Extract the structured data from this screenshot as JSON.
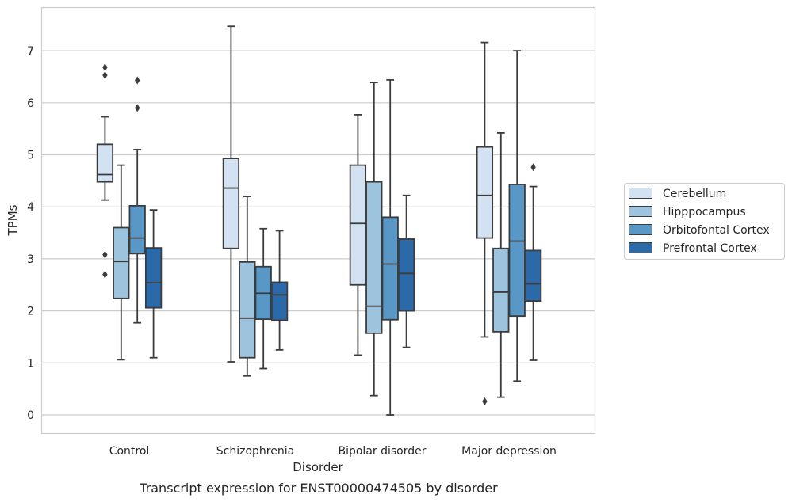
{
  "chart_data": {
    "type": "box",
    "title": "Transcript expression for ENST00000474505 by disorder",
    "xlabel": "Disorder",
    "ylabel": "TPMs",
    "ylim": [
      -0.35,
      7.85
    ],
    "yticks": [
      0,
      1,
      2,
      3,
      4,
      5,
      6,
      7
    ],
    "grid": "horizontal",
    "legend_position": "right",
    "categories": [
      "Control",
      "Schizophrenia",
      "Bipolar disorder",
      "Major depression"
    ],
    "series": [
      {
        "name": "Cerebellum",
        "color": "#d2e2f2",
        "boxes": [
          {
            "whislo": 4.13,
            "q1": 4.48,
            "med": 4.62,
            "q3": 5.2,
            "whishi": 5.73,
            "fliers": [
              6.68,
              6.53,
              3.08,
              2.7
            ]
          },
          {
            "whislo": 1.02,
            "q1": 3.2,
            "med": 4.36,
            "q3": 4.93,
            "whishi": 7.47,
            "fliers": []
          },
          {
            "whislo": 1.15,
            "q1": 2.5,
            "med": 3.68,
            "q3": 4.8,
            "whishi": 5.77,
            "fliers": []
          },
          {
            "whislo": 1.5,
            "q1": 3.4,
            "med": 4.22,
            "q3": 5.15,
            "whishi": 7.16,
            "fliers": [
              0.26
            ]
          }
        ]
      },
      {
        "name": "Hipppocampus",
        "color": "#9dc4de",
        "boxes": [
          {
            "whislo": 1.06,
            "q1": 2.24,
            "med": 2.95,
            "q3": 3.6,
            "whishi": 4.8,
            "fliers": []
          },
          {
            "whislo": 0.75,
            "q1": 1.1,
            "med": 1.86,
            "q3": 2.94,
            "whishi": 4.2,
            "fliers": []
          },
          {
            "whislo": 0.37,
            "q1": 1.57,
            "med": 2.09,
            "q3": 4.48,
            "whishi": 6.39,
            "fliers": []
          },
          {
            "whislo": 0.34,
            "q1": 1.6,
            "med": 2.36,
            "q3": 3.2,
            "whishi": 5.42,
            "fliers": []
          }
        ]
      },
      {
        "name": "Orbitofontal Cortex",
        "color": "#5897c6",
        "boxes": [
          {
            "whislo": 1.77,
            "q1": 3.1,
            "med": 3.4,
            "q3": 4.02,
            "whishi": 5.1,
            "fliers": [
              6.43,
              5.9
            ]
          },
          {
            "whislo": 0.89,
            "q1": 1.84,
            "med": 2.34,
            "q3": 2.85,
            "whishi": 3.58,
            "fliers": []
          },
          {
            "whislo": 0.0,
            "q1": 1.83,
            "med": 2.9,
            "q3": 3.8,
            "whishi": 6.44,
            "fliers": []
          },
          {
            "whislo": 0.65,
            "q1": 1.9,
            "med": 3.34,
            "q3": 4.43,
            "whishi": 7.0,
            "fliers": []
          }
        ]
      },
      {
        "name": "Prefrontal Cortex",
        "color": "#2b69a9",
        "boxes": [
          {
            "whislo": 1.1,
            "q1": 2.06,
            "med": 2.54,
            "q3": 3.21,
            "whishi": 3.94,
            "fliers": []
          },
          {
            "whislo": 1.25,
            "q1": 1.82,
            "med": 2.31,
            "q3": 2.55,
            "whishi": 3.54,
            "fliers": []
          },
          {
            "whislo": 1.3,
            "q1": 2.0,
            "med": 2.72,
            "q3": 3.38,
            "whishi": 4.22,
            "fliers": []
          },
          {
            "whislo": 1.05,
            "q1": 2.19,
            "med": 2.52,
            "q3": 3.16,
            "whishi": 4.39,
            "fliers": [
              4.76
            ]
          }
        ]
      }
    ]
  }
}
